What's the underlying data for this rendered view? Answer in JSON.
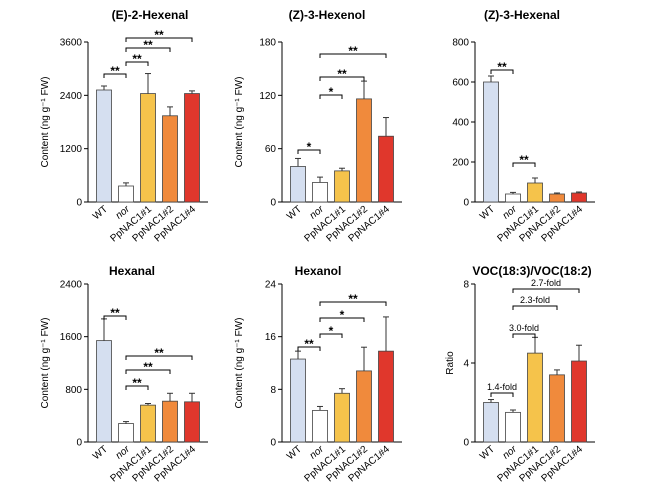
{
  "chart_data": [
    {
      "type": "bar",
      "title": "(E)-2-Hexenal",
      "ylabel": "Content (ng g⁻¹ FW)",
      "categories": [
        "WT",
        "nor",
        "PpNAC1#1",
        "PpNAC1#2",
        "PpNAC1#4"
      ],
      "values": [
        2520,
        360,
        2440,
        1940,
        2440
      ],
      "errors": [
        90,
        70,
        450,
        200,
        60
      ],
      "ylim": [
        0,
        3600
      ],
      "yticks": [
        "0",
        "1200",
        "2400",
        "3600"
      ],
      "colors": [
        "#d5dff0",
        "#ffffff",
        "#f5c34b",
        "#f08a3c",
        "#e0372c"
      ],
      "significance": [
        {
          "from": 0,
          "to": 1,
          "label": "**"
        },
        {
          "from": 1,
          "to": 2,
          "label": "**"
        },
        {
          "from": 1,
          "to": 3,
          "label": "**"
        },
        {
          "from": 1,
          "to": 4,
          "label": "**"
        }
      ]
    },
    {
      "type": "bar",
      "title": "(Z)-3-Hexenol",
      "ylabel": "Content (ng g⁻¹ FW)",
      "categories": [
        "WT",
        "nor",
        "PpNAC1#1",
        "PpNAC1#2",
        "PpNAC1#4"
      ],
      "values": [
        40,
        22,
        35,
        116,
        74
      ],
      "errors": [
        9,
        6,
        3,
        20,
        21
      ],
      "ylim": [
        0,
        180
      ],
      "yticks": [
        "0",
        "60",
        "120",
        "180"
      ],
      "colors": [
        "#d5dff0",
        "#ffffff",
        "#f5c34b",
        "#f08a3c",
        "#e0372c"
      ],
      "significance": [
        {
          "from": 0,
          "to": 1,
          "label": "*"
        },
        {
          "from": 1,
          "to": 2,
          "label": "*"
        },
        {
          "from": 1,
          "to": 3,
          "label": "**"
        },
        {
          "from": 1,
          "to": 4,
          "label": "**"
        }
      ]
    },
    {
      "type": "bar",
      "title": "(Z)-3-Hexenal",
      "ylabel": "",
      "categories": [
        "WT",
        "nor",
        "PpNAC1#1",
        "PpNAC1#2",
        "PpNAC1#4"
      ],
      "values": [
        600,
        40,
        95,
        40,
        45
      ],
      "errors": [
        30,
        8,
        25,
        5,
        5
      ],
      "ylim": [
        0,
        800
      ],
      "yticks": [
        "0",
        "200",
        "400",
        "600",
        "800"
      ],
      "colors": [
        "#d5dff0",
        "#ffffff",
        "#f5c34b",
        "#f08a3c",
        "#e0372c"
      ],
      "significance": [
        {
          "from": 0,
          "to": 1,
          "label": "**"
        },
        {
          "from": 1,
          "to": 2,
          "label": "**"
        }
      ]
    },
    {
      "type": "bar",
      "title": "Hexanal",
      "ylabel": "Content (ng g⁻¹ FW)",
      "categories": [
        "WT",
        "nor",
        "PpNAC1#1",
        "PpNAC1#2",
        "PpNAC1#4"
      ],
      "values": [
        1540,
        280,
        560,
        620,
        610
      ],
      "errors": [
        330,
        30,
        25,
        120,
        130
      ],
      "ylim": [
        0,
        2400
      ],
      "yticks": [
        "0",
        "800",
        "1600",
        "2400"
      ],
      "colors": [
        "#d5dff0",
        "#ffffff",
        "#f5c34b",
        "#f08a3c",
        "#e0372c"
      ],
      "significance": [
        {
          "from": 0,
          "to": 1,
          "label": "**"
        },
        {
          "from": 1,
          "to": 2,
          "label": "**"
        },
        {
          "from": 1,
          "to": 3,
          "label": "**"
        },
        {
          "from": 1,
          "to": 4,
          "label": "**"
        }
      ]
    },
    {
      "type": "bar",
      "title": "Hexanol",
      "ylabel": "Content (ng g⁻¹ FW)",
      "categories": [
        "WT",
        "nor",
        "PpNAC1#1",
        "PpNAC1#2",
        "PpNAC1#4"
      ],
      "values": [
        12.6,
        4.8,
        7.4,
        10.8,
        13.8
      ],
      "errors": [
        1.2,
        0.6,
        0.7,
        3.6,
        5.2
      ],
      "ylim": [
        0,
        24
      ],
      "yticks": [
        "0",
        "8",
        "16",
        "24"
      ],
      "colors": [
        "#d5dff0",
        "#ffffff",
        "#f5c34b",
        "#f08a3c",
        "#e0372c"
      ],
      "significance": [
        {
          "from": 0,
          "to": 1,
          "label": "**"
        },
        {
          "from": 1,
          "to": 2,
          "label": "*"
        },
        {
          "from": 1,
          "to": 3,
          "label": "*"
        },
        {
          "from": 1,
          "to": 4,
          "label": "**"
        }
      ]
    },
    {
      "type": "bar",
      "title": "VOC(18:3)/VOC(18:2)",
      "ylabel": "Ratio",
      "categories": [
        "WT",
        "nor",
        "PpNAC1#1",
        "PpNAC1#2",
        "PpNAC1#4"
      ],
      "values": [
        2.0,
        1.5,
        4.5,
        3.4,
        4.1
      ],
      "errors": [
        0.15,
        0.12,
        0.8,
        0.25,
        0.8
      ],
      "ylim": [
        0,
        8
      ],
      "yticks": [
        "0",
        "4",
        "8"
      ],
      "colors": [
        "#d5dff0",
        "#ffffff",
        "#f5c34b",
        "#f08a3c",
        "#e0372c"
      ],
      "significance": [
        {
          "from": 0,
          "to": 1,
          "label": "1.4-fold"
        },
        {
          "from": 1,
          "to": 2,
          "label": "3.0-fold"
        },
        {
          "from": 1,
          "to": 3,
          "label": "2.3-fold"
        },
        {
          "from": 1,
          "to": 4,
          "label": "2.7-fold"
        }
      ]
    }
  ]
}
